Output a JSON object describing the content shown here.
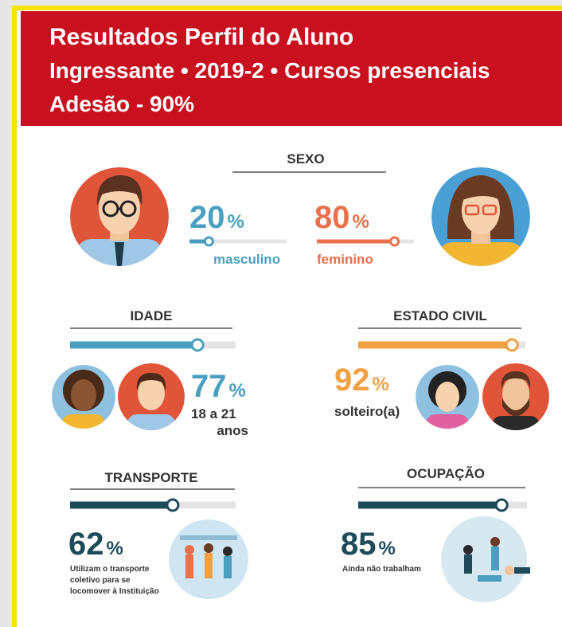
{
  "header": {
    "title": "Resultados Perfil do Aluno",
    "subtitle": "Ingressante • 2019-2 • Cursos presenciais",
    "participation": "Adesão - 90%"
  },
  "sexo": {
    "title": "SEXO",
    "items": [
      {
        "value": 20,
        "unit": "%",
        "label": "masculino"
      },
      {
        "value": 80,
        "unit": "%",
        "label": "feminino"
      }
    ]
  },
  "idade": {
    "title": "IDADE",
    "value": 77,
    "unit": "%",
    "lines": [
      "18 a 21",
      "anos"
    ]
  },
  "estado_civil": {
    "title": "ESTADO CIVIL",
    "value": 92,
    "unit": "%",
    "lines": [
      "solteiro(a)"
    ]
  },
  "transporte": {
    "title": "TRANSPORTE",
    "value": 62,
    "unit": "%",
    "lines": [
      "Utilizam o transporte",
      "coletivo para se",
      "locomover à Instituição"
    ]
  },
  "ocupacao": {
    "title": "OCUPAÇÃO",
    "value": 85,
    "unit": "%",
    "lines": [
      "Ainda não trabalham"
    ]
  }
}
